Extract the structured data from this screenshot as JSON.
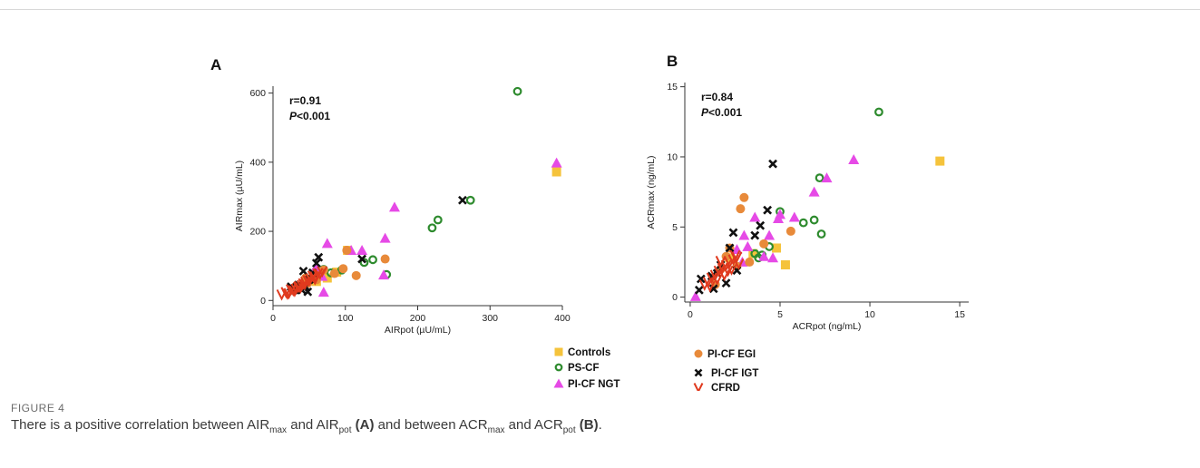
{
  "figure": {
    "label": "FIGURE 4",
    "caption": {
      "t1": "There is a positive correlation between AIR",
      "s1": "max",
      "t2": " and AIR",
      "s2": "pot",
      "b1": " (A)",
      "t3": " and between ACR",
      "s3": "max",
      "t4": " and ACR",
      "s4": "pot",
      "b2": " (B)",
      "t5": "."
    }
  },
  "colors": {
    "Controls": "#f5c33b",
    "PS-CF": "#2e8b2e",
    "PI-CF NGT": "#e64ae6",
    "PI-CF EGI": "#e88a3a",
    "PI-CF IGT": "#111111",
    "CFRD": "#e03a1e"
  },
  "legend": [
    {
      "group": "Controls",
      "marker": "square"
    },
    {
      "group": "PI-CF EGI",
      "marker": "circle"
    },
    {
      "group": "PS-CF",
      "marker": "ring"
    },
    {
      "group": "PI-CF IGT",
      "marker": "x"
    },
    {
      "group": "PI-CF NGT",
      "marker": "triangle"
    },
    {
      "group": "CFRD",
      "marker": "v"
    }
  ],
  "chart_data": [
    {
      "panel": "A",
      "type": "scatter",
      "xlabel": "AIRpot (µU/mL)",
      "ylabel": "AIRmax (µU/mL)",
      "xlim": [
        0,
        400
      ],
      "ylim": [
        -15,
        620
      ],
      "xticks": [
        0,
        100,
        200,
        300,
        400
      ],
      "yticks": [
        0,
        200,
        400,
        600
      ],
      "stat_r": "r=0.91",
      "stat_p_italic": "P",
      "stat_p_rest": "<0.001",
      "series": [
        {
          "name": "Controls",
          "points": [
            [
              392,
              372
            ],
            [
              75,
              65
            ],
            [
              60,
              55
            ],
            [
              103,
              145
            ],
            [
              88,
              82
            ]
          ]
        },
        {
          "name": "PS-CF",
          "points": [
            [
              338,
              605
            ],
            [
              273,
              290
            ],
            [
              228,
              233
            ],
            [
              220,
              210
            ],
            [
              138,
              118
            ],
            [
              157,
              75
            ],
            [
              126,
              110
            ],
            [
              95,
              88
            ],
            [
              80,
              80
            ],
            [
              70,
              90
            ]
          ]
        },
        {
          "name": "PI-CF NGT",
          "points": [
            [
              392,
              398
            ],
            [
              168,
              270
            ],
            [
              155,
              180
            ],
            [
              123,
              145
            ],
            [
              108,
              145
            ],
            [
              75,
              165
            ],
            [
              70,
              24
            ],
            [
              153,
              74
            ],
            [
              60,
              95
            ],
            [
              55,
              80
            ],
            [
              68,
              70
            ]
          ]
        },
        {
          "name": "PI-CF EGI",
          "points": [
            [
              155,
              120
            ],
            [
              115,
              72
            ],
            [
              97,
              92
            ],
            [
              102,
              145
            ],
            [
              85,
              78
            ],
            [
              70,
              88
            ],
            [
              60,
              60
            ],
            [
              48,
              50
            ],
            [
              45,
              65
            ],
            [
              58,
              75
            ]
          ]
        },
        {
          "name": "PI-CF IGT",
          "points": [
            [
              262,
              290
            ],
            [
              123,
              120
            ],
            [
              63,
              125
            ],
            [
              55,
              80
            ],
            [
              50,
              60
            ],
            [
              45,
              40
            ],
            [
              40,
              30
            ],
            [
              35,
              45
            ],
            [
              25,
              40
            ],
            [
              48,
              25
            ],
            [
              60,
              108
            ],
            [
              42,
              85
            ],
            [
              30,
              30
            ]
          ]
        },
        {
          "name": "CFRD",
          "points": [
            [
              12,
              18
            ],
            [
              18,
              25
            ],
            [
              22,
              22
            ],
            [
              28,
              30
            ],
            [
              32,
              35
            ],
            [
              35,
              40
            ],
            [
              38,
              38
            ],
            [
              42,
              50
            ],
            [
              45,
              55
            ],
            [
              48,
              60
            ],
            [
              52,
              65
            ],
            [
              55,
              72
            ],
            [
              58,
              70
            ],
            [
              62,
              80
            ],
            [
              65,
              78
            ],
            [
              40,
              45
            ],
            [
              30,
              28
            ],
            [
              25,
              33
            ],
            [
              50,
              58
            ],
            [
              20,
              20
            ],
            [
              44,
              48
            ],
            [
              36,
              42
            ],
            [
              68,
              85
            ],
            [
              58,
              62
            ]
          ]
        }
      ]
    },
    {
      "panel": "B",
      "type": "scatter",
      "xlabel": "ACRpot (ng/mL)",
      "ylabel": "ACRmax (ng/mL)",
      "xlim": [
        -0.3,
        15.5
      ],
      "ylim": [
        -0.35,
        15.3
      ],
      "xticks": [
        0,
        5,
        10,
        15
      ],
      "yticks": [
        0,
        5,
        10,
        15
      ],
      "stat_r": "r=0.84",
      "stat_p_italic": "P",
      "stat_p_rest": "<0.001",
      "series": [
        {
          "name": "Controls",
          "points": [
            [
              13.9,
              9.7
            ],
            [
              5.3,
              2.3
            ],
            [
              4.8,
              3.5
            ],
            [
              3.5,
              3.1
            ],
            [
              2.2,
              2.8
            ]
          ]
        },
        {
          "name": "PS-CF",
          "points": [
            [
              10.5,
              13.2
            ],
            [
              7.2,
              8.5
            ],
            [
              7.3,
              4.5
            ],
            [
              6.3,
              5.3
            ],
            [
              6.9,
              5.5
            ],
            [
              5.0,
              6.1
            ],
            [
              4.4,
              3.6
            ],
            [
              4.0,
              3.0
            ],
            [
              3.6,
              3.1
            ],
            [
              3.8,
              2.8
            ]
          ]
        },
        {
          "name": "PI-CF NGT",
          "points": [
            [
              9.1,
              9.8
            ],
            [
              7.6,
              8.5
            ],
            [
              6.9,
              7.5
            ],
            [
              5.8,
              5.7
            ],
            [
              5.0,
              5.9
            ],
            [
              4.9,
              5.6
            ],
            [
              4.6,
              2.8
            ],
            [
              4.4,
              4.4
            ],
            [
              3.6,
              5.7
            ],
            [
              3.0,
              4.4
            ],
            [
              2.6,
              3.4
            ],
            [
              0.3,
              0.05
            ],
            [
              3.2,
              3.6
            ],
            [
              4.1,
              2.9
            ],
            [
              2.9,
              2.5
            ]
          ]
        },
        {
          "name": "PI-CF EGI",
          "points": [
            [
              3.0,
              7.1
            ],
            [
              2.8,
              6.3
            ],
            [
              4.1,
              3.8
            ],
            [
              5.6,
              4.7
            ],
            [
              3.3,
              2.5
            ],
            [
              2.2,
              3.5
            ],
            [
              1.7,
              2.0
            ],
            [
              1.4,
              0.9
            ],
            [
              2.0,
              2.9
            ],
            [
              2.6,
              2.2
            ]
          ]
        },
        {
          "name": "PI-CF IGT",
          "points": [
            [
              4.6,
              9.5
            ],
            [
              4.3,
              6.2
            ],
            [
              3.9,
              5.1
            ],
            [
              3.6,
              4.4
            ],
            [
              2.4,
              4.6
            ],
            [
              2.2,
              3.5
            ],
            [
              2.0,
              1.0
            ],
            [
              2.6,
              1.9
            ],
            [
              1.5,
              1.7
            ],
            [
              0.6,
              1.3
            ],
            [
              1.2,
              1.5
            ],
            [
              1.7,
              2.3
            ],
            [
              1.3,
              0.6
            ],
            [
              0.5,
              0.5
            ]
          ]
        },
        {
          "name": "CFRD",
          "points": [
            [
              0.8,
              0.9
            ],
            [
              1.0,
              1.1
            ],
            [
              1.2,
              1.4
            ],
            [
              1.4,
              1.6
            ],
            [
              1.6,
              1.9
            ],
            [
              1.8,
              2.1
            ],
            [
              2.0,
              2.3
            ],
            [
              2.2,
              2.5
            ],
            [
              2.4,
              2.7
            ],
            [
              2.6,
              2.9
            ],
            [
              1.5,
              1.3
            ],
            [
              1.9,
              1.6
            ],
            [
              2.3,
              2.0
            ],
            [
              1.1,
              0.8
            ],
            [
              2.7,
              2.4
            ],
            [
              1.7,
              2.6
            ],
            [
              2.1,
              1.9
            ],
            [
              2.5,
              3.0
            ]
          ]
        }
      ]
    }
  ]
}
